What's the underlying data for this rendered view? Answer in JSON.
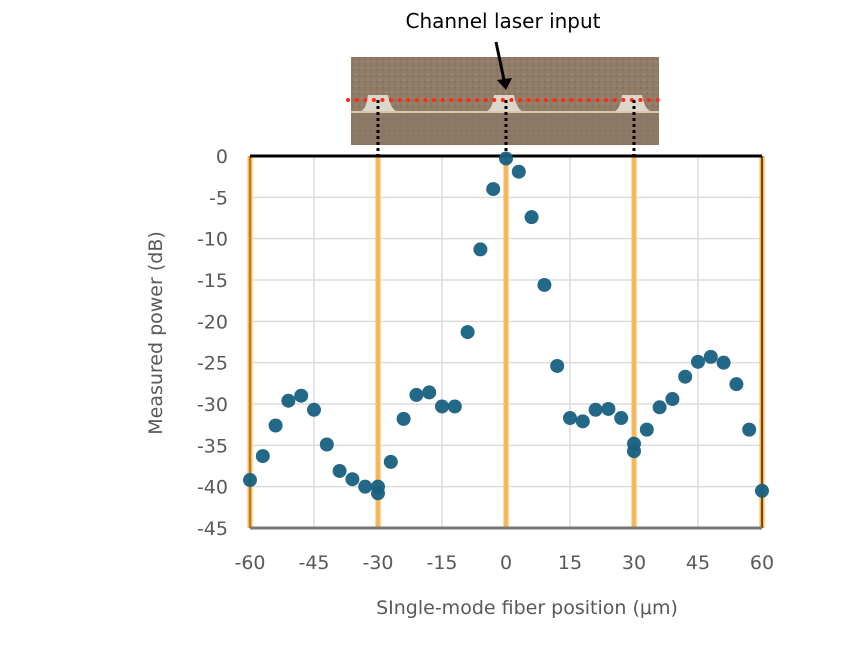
{
  "chart_data": {
    "type": "scatter",
    "title": "",
    "annotation": "Channel laser input",
    "xlabel": "SIngle-mode fiber position (μm)",
    "ylabel": "Measured power (dB)",
    "xlim": [
      -60,
      60
    ],
    "ylim": [
      -45,
      0
    ],
    "xticks": [
      "-60",
      "-45",
      "-30",
      "-15",
      "0",
      "15",
      "30",
      "45",
      "60"
    ],
    "yticks": [
      "0",
      "-5",
      "-10",
      "-15",
      "-20",
      "-25",
      "-30",
      "-35",
      "-40",
      "-45"
    ],
    "grid": true,
    "channel_markers_x": [
      -60,
      -30,
      0,
      30,
      60
    ],
    "colors": {
      "points": "#17607f",
      "channel_lines": "#f6b85a",
      "laser_line": "#ff2a10"
    },
    "points": [
      [
        -60,
        -39.2
      ],
      [
        -57,
        -36.3
      ],
      [
        -54,
        -32.6
      ],
      [
        -51,
        -29.6
      ],
      [
        -48,
        -29.0
      ],
      [
        -45,
        -30.7
      ],
      [
        -42,
        -34.9
      ],
      [
        -39,
        -38.1
      ],
      [
        -36,
        -39.1
      ],
      [
        -33,
        -40.0
      ],
      [
        -30,
        -40.0
      ],
      [
        -30,
        -40.8
      ],
      [
        -27,
        -37.0
      ],
      [
        -24,
        -31.8
      ],
      [
        -21,
        -28.9
      ],
      [
        -18,
        -28.6
      ],
      [
        -15,
        -30.3
      ],
      [
        -12,
        -30.3
      ],
      [
        -9,
        -21.3
      ],
      [
        -6,
        -11.3
      ],
      [
        -3,
        -4.0
      ],
      [
        0,
        -0.3
      ],
      [
        3,
        -1.9
      ],
      [
        6,
        -7.4
      ],
      [
        9,
        -15.6
      ],
      [
        12,
        -25.4
      ],
      [
        15,
        -31.7
      ],
      [
        18,
        -32.1
      ],
      [
        21,
        -30.7
      ],
      [
        24,
        -30.6
      ],
      [
        27,
        -31.7
      ],
      [
        30,
        -34.8
      ],
      [
        30,
        -35.7
      ],
      [
        33,
        -33.1
      ],
      [
        36,
        -30.4
      ],
      [
        39,
        -29.4
      ],
      [
        42,
        -26.7
      ],
      [
        45,
        -24.9
      ],
      [
        48,
        -24.3
      ],
      [
        51,
        -25.0
      ],
      [
        54,
        -27.6
      ],
      [
        57,
        -33.1
      ],
      [
        60,
        -40.5
      ]
    ]
  }
}
